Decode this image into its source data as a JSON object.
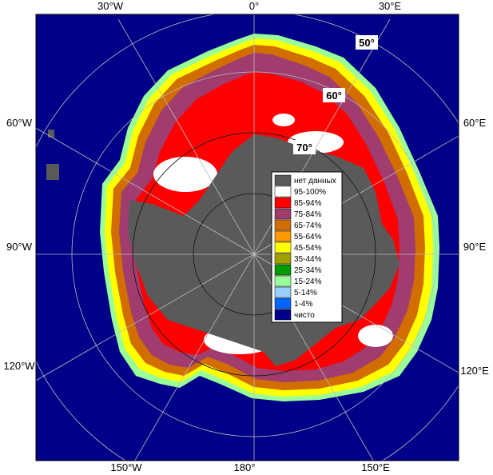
{
  "lon_labels": {
    "top": [
      "30°W",
      "0°",
      "30°E"
    ],
    "bottom": [
      "150°W",
      "180°",
      "150°E"
    ],
    "left": [
      "60°W",
      "90°W",
      "120°W"
    ],
    "right": [
      "60°E",
      "90°E",
      "120°E"
    ]
  },
  "lat_labels": [
    "50°",
    "60°",
    "70°"
  ],
  "legend": [
    {
      "label": "нет данных",
      "color": "#5a5a5a"
    },
    {
      "label": "95-100%",
      "color": "#ffffff"
    },
    {
      "label": "85-94%",
      "color": "#ff0000"
    },
    {
      "label": "75-84%",
      "color": "#a03c6e"
    },
    {
      "label": "65-74%",
      "color": "#d26e00"
    },
    {
      "label": "55-64%",
      "color": "#ff9900"
    },
    {
      "label": "45-54%",
      "color": "#ffff00"
    },
    {
      "label": "35-44%",
      "color": "#a0a000"
    },
    {
      "label": "25-34%",
      "color": "#009900"
    },
    {
      "label": "15-24%",
      "color": "#99ff99"
    },
    {
      "label": "5-14%",
      "color": "#99ccff"
    },
    {
      "label": "1-4%",
      "color": "#0066ff"
    },
    {
      "label": "чисто",
      "color": "#000088"
    }
  ],
  "colors": {
    "ocean": "#000088",
    "land": "#5a5a5a",
    "grid": "#bbbbbb",
    "frame": "#000000"
  }
}
